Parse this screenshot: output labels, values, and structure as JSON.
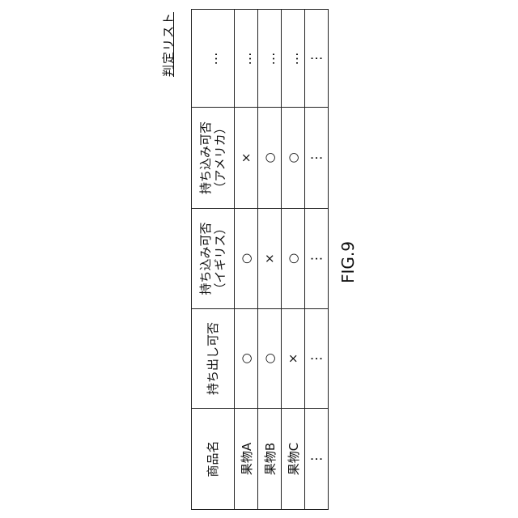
{
  "title": "判定リスト",
  "figure_label": "FIG.9",
  "table": {
    "headers": [
      "商品名",
      "持ち出し可否",
      "持ち込み可否\n（イギリス）",
      "持ち込み可否\n（アメリカ）",
      "…"
    ],
    "header_lines": [
      [
        "商品名"
      ],
      [
        "持ち出し可否"
      ],
      [
        "持ち込み可否",
        "（イギリス）"
      ],
      [
        "持ち込み可否",
        "（アメリカ）"
      ],
      [
        "…"
      ]
    ],
    "rows": [
      [
        "果物A",
        "○",
        "○",
        "×",
        "…"
      ],
      [
        "果物B",
        "○",
        "×",
        "○",
        "…"
      ],
      [
        "果物C",
        "×",
        "○",
        "○",
        "…"
      ],
      [
        "⋮",
        "⋮",
        "⋮",
        "⋮",
        "⋮"
      ]
    ]
  }
}
